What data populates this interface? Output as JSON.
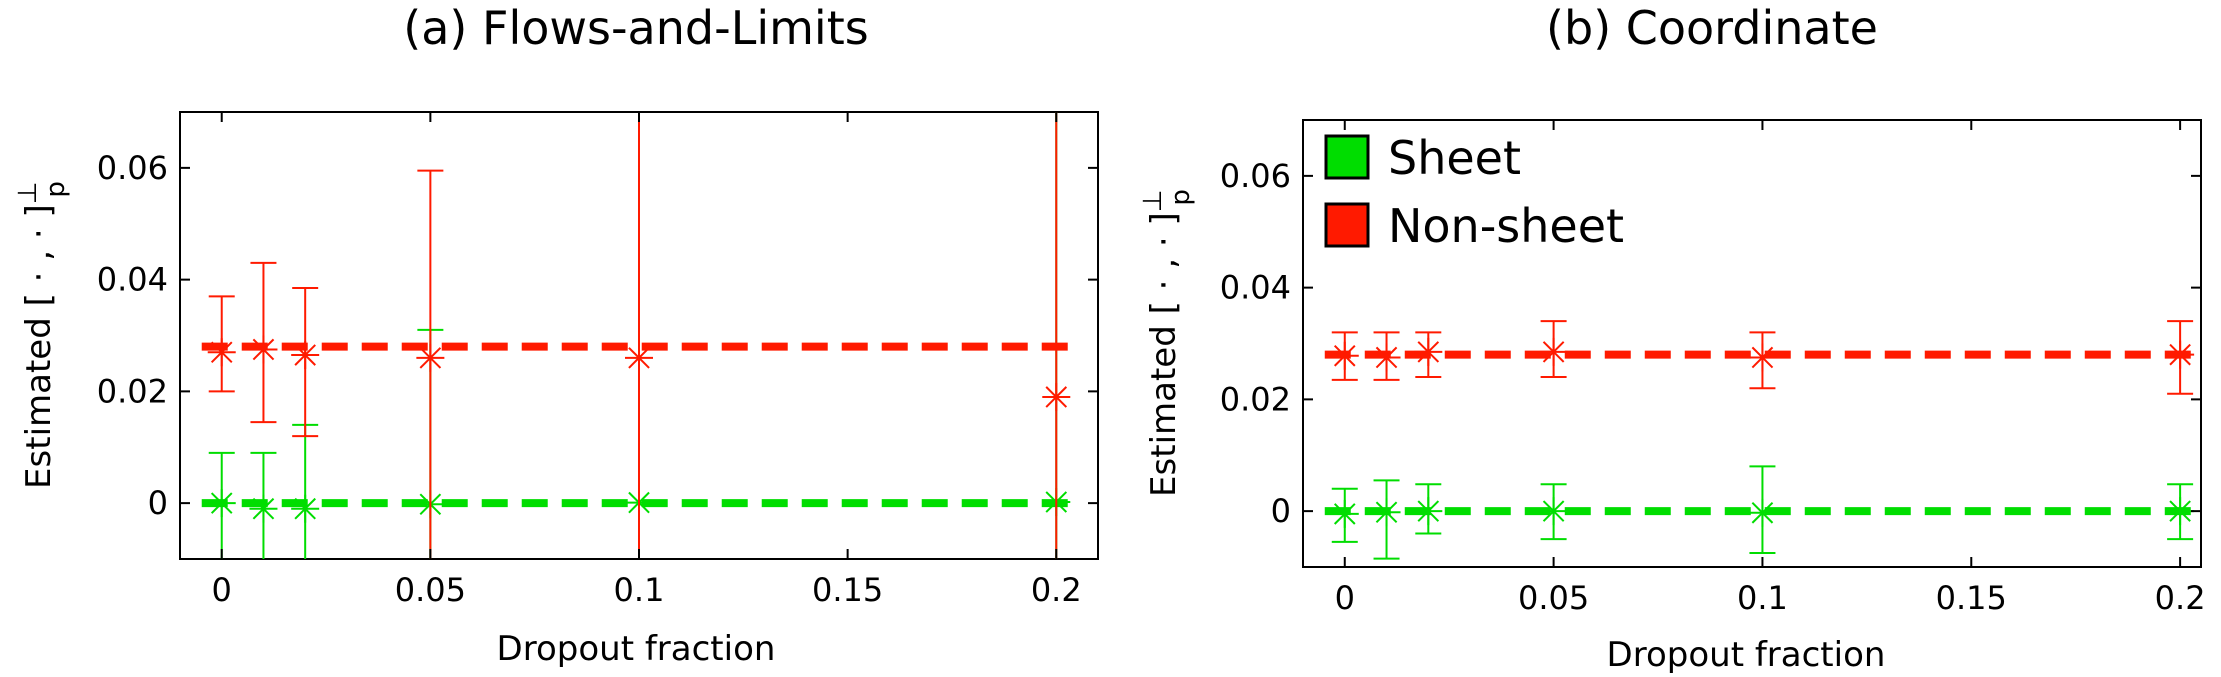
{
  "chart_data": [
    {
      "type": "scatter",
      "title": "(a) Flows-and-Limits",
      "xlabel": "Dropout fraction",
      "ylabel": "Estimated [ · , · ]",
      "ylabel_sup": "⊥",
      "ylabel_sub": "p",
      "xlim": [
        -0.01,
        0.21
      ],
      "ylim": [
        -0.01,
        0.07
      ],
      "xticks": [
        0,
        0.05,
        0.1,
        0.15,
        0.2
      ],
      "xtick_labels": [
        "0",
        "0.05",
        "0.1",
        "0.15",
        "0.2"
      ],
      "yticks": [
        0,
        0.02,
        0.04,
        0.06
      ],
      "ytick_labels": [
        "0",
        "0.02",
        "0.04",
        "0.06"
      ],
      "grid": false,
      "series": [
        {
          "key": "sheet",
          "color": "#00dd00",
          "reference": 0,
          "points": [
            {
              "x": 0,
              "y": 0.0,
              "lo": -0.01,
              "hi": 0.009
            },
            {
              "x": 0.01,
              "y": -0.001,
              "lo": -0.01,
              "hi": 0.009
            },
            {
              "x": 0.02,
              "y": -0.001,
              "lo": -0.01,
              "hi": 0.014
            },
            {
              "x": 0.05,
              "y": -0.0002,
              "lo": -0.01,
              "hi": 0.031
            },
            {
              "x": 0.1,
              "y": 0.0001,
              "lo": -0.01,
              "hi": 0.07
            },
            {
              "x": 0.2,
              "y": 0.0002,
              "lo": -0.01,
              "hi": 0.07
            }
          ]
        },
        {
          "key": "non-sheet",
          "color": "#ff1a00",
          "reference": 0.028,
          "points": [
            {
              "x": 0,
              "y": 0.027,
              "lo": 0.02,
              "hi": 0.037
            },
            {
              "x": 0.01,
              "y": 0.0275,
              "lo": 0.0145,
              "hi": 0.043
            },
            {
              "x": 0.02,
              "y": 0.0265,
              "lo": 0.012,
              "hi": 0.0385
            },
            {
              "x": 0.05,
              "y": 0.026,
              "lo": -0.01,
              "hi": 0.0595
            },
            {
              "x": 0.1,
              "y": 0.026,
              "lo": -0.01,
              "hi": 0.07
            },
            {
              "x": 0.2,
              "y": 0.019,
              "lo": -0.01,
              "hi": 0.07
            }
          ]
        }
      ]
    },
    {
      "type": "scatter",
      "title": "(b) Coordinate",
      "xlabel": "Dropout fraction",
      "ylabel": "Estimated [ · , · ]",
      "ylabel_sup": "⊥",
      "ylabel_sub": "p",
      "xlim": [
        -0.01,
        0.205
      ],
      "ylim": [
        -0.01,
        0.07
      ],
      "xticks": [
        0,
        0.05,
        0.1,
        0.15,
        0.2
      ],
      "xtick_labels": [
        "0",
        "0.05",
        "0.1",
        "0.15",
        "0.2"
      ],
      "yticks": [
        0,
        0.02,
        0.04,
        0.06
      ],
      "ytick_labels": [
        "0",
        "0.02",
        "0.04",
        "0.06"
      ],
      "grid": false,
      "legend_position": "top-left",
      "legend": [
        {
          "label": "Sheet",
          "color": "#00dd00"
        },
        {
          "label": "Non-sheet",
          "color": "#ff1a00"
        }
      ],
      "series": [
        {
          "key": "sheet",
          "color": "#00dd00",
          "reference": 0,
          "points": [
            {
              "x": 0,
              "y": -0.0005,
              "lo": -0.0055,
              "hi": 0.004
            },
            {
              "x": 0.01,
              "y": -0.0002,
              "lo": -0.0085,
              "hi": 0.0055
            },
            {
              "x": 0.02,
              "y": 0.0,
              "lo": -0.004,
              "hi": 0.0048
            },
            {
              "x": 0.05,
              "y": 0.0,
              "lo": -0.005,
              "hi": 0.0048
            },
            {
              "x": 0.1,
              "y": -0.0003,
              "lo": -0.0075,
              "hi": 0.008
            },
            {
              "x": 0.2,
              "y": 0.0,
              "lo": -0.005,
              "hi": 0.0048
            }
          ]
        },
        {
          "key": "non-sheet",
          "color": "#ff1a00",
          "reference": 0.028,
          "points": [
            {
              "x": 0,
              "y": 0.0278,
              "lo": 0.0235,
              "hi": 0.032
            },
            {
              "x": 0.01,
              "y": 0.0275,
              "lo": 0.0235,
              "hi": 0.032
            },
            {
              "x": 0.02,
              "y": 0.0285,
              "lo": 0.024,
              "hi": 0.032
            },
            {
              "x": 0.05,
              "y": 0.0285,
              "lo": 0.024,
              "hi": 0.034
            },
            {
              "x": 0.1,
              "y": 0.0275,
              "lo": 0.022,
              "hi": 0.032
            },
            {
              "x": 0.2,
              "y": 0.028,
              "lo": 0.021,
              "hi": 0.034
            }
          ]
        }
      ]
    }
  ]
}
